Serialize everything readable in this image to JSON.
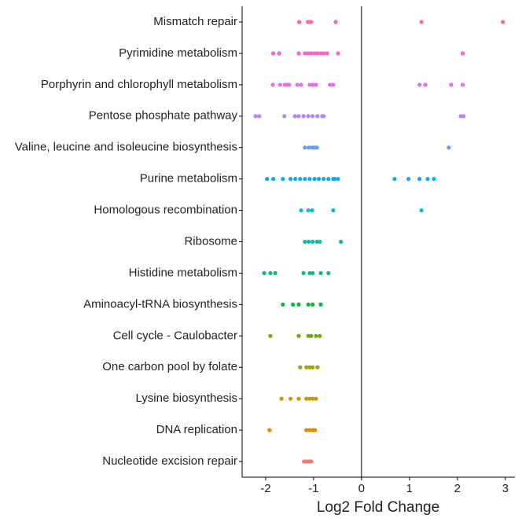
{
  "chart_data": {
    "type": "strip",
    "xlabel": "Log2 Fold Change",
    "categories": [
      "Mismatch repair",
      "Pyrimidine metabolism",
      "Porphyrin and chlorophyll metabolism",
      "Pentose phosphate pathway",
      "Valine, leucine and isoleucine biosynthesis",
      "Purine metabolism",
      "Homologous recombination",
      "Ribosome",
      "Histidine metabolism",
      "Aminoacyl-tRNA biosynthesis",
      "Cell cycle - Caulobacter",
      "One carbon pool by folate",
      "Lysine biosynthesis",
      "DNA replication",
      "Nucleotide excision repair"
    ],
    "colors": [
      "#FF67A4",
      "#FD61D1",
      "#E76BF3",
      "#B983FF",
      "#619CFF",
      "#00B0F6",
      "#00BCD8",
      "#00C0AF",
      "#00BF7D",
      "#00BA38",
      "#6BB100",
      "#A3A500",
      "#C99800",
      "#E58700",
      "#F8766D"
    ],
    "values": [
      [
        -1.3,
        -1.12,
        -1.08,
        -1.05,
        -0.54,
        1.25,
        2.95
      ],
      [
        -1.84,
        -1.72,
        -1.31,
        -1.18,
        -1.11,
        -1.05,
        -0.98,
        -0.92,
        -0.85,
        -0.79,
        -0.72,
        -0.49,
        2.11
      ],
      [
        -1.85,
        -1.7,
        -1.6,
        -1.55,
        -1.51,
        -1.34,
        -1.26,
        -1.08,
        -1.02,
        -0.95,
        -0.66,
        -0.59,
        1.21,
        1.33,
        1.87,
        2.11
      ],
      [
        -2.21,
        -2.13,
        -1.61,
        -1.39,
        -1.31,
        -1.21,
        -1.11,
        -1.02,
        -0.92,
        -0.82,
        -0.79,
        2.07,
        2.13
      ],
      [
        -1.18,
        -1.1,
        -1.03,
        -0.98,
        -0.93,
        1.82
      ],
      [
        -1.97,
        -1.84,
        -1.64,
        -1.48,
        -1.38,
        -1.28,
        -1.18,
        -1.08,
        -0.98,
        -0.89,
        -0.79,
        -0.69,
        -0.59,
        -0.56,
        -0.49,
        0.69,
        0.98,
        1.21,
        1.38,
        1.51
      ],
      [
        -1.26,
        -1.11,
        -1.03,
        -0.59,
        1.25
      ],
      [
        -1.18,
        -1.1,
        -1.02,
        -0.93,
        -0.87,
        -0.43
      ],
      [
        -2.03,
        -1.9,
        -1.8,
        -1.21,
        -1.08,
        -1.02,
        -0.85,
        -0.69
      ],
      [
        -1.64,
        -1.43,
        -1.31,
        -1.11,
        -1.02,
        -0.85
      ],
      [
        -1.9,
        -1.31,
        -1.11,
        -1.05,
        -0.95,
        -0.87
      ],
      [
        -1.28,
        -1.15,
        -1.08,
        -1.02,
        -0.92
      ],
      [
        -1.67,
        -1.48,
        -1.31,
        -1.15,
        -1.08,
        -1.02,
        -0.95
      ],
      [
        -1.92,
        -1.15,
        -1.08,
        -1.02,
        -0.97
      ],
      [
        -1.2,
        -1.15,
        -1.1,
        -1.05
      ]
    ],
    "xlim": [
      -2.49,
      3.2
    ],
    "xticks": [
      -2,
      -1,
      0,
      1,
      2,
      3
    ],
    "vline": 0
  }
}
